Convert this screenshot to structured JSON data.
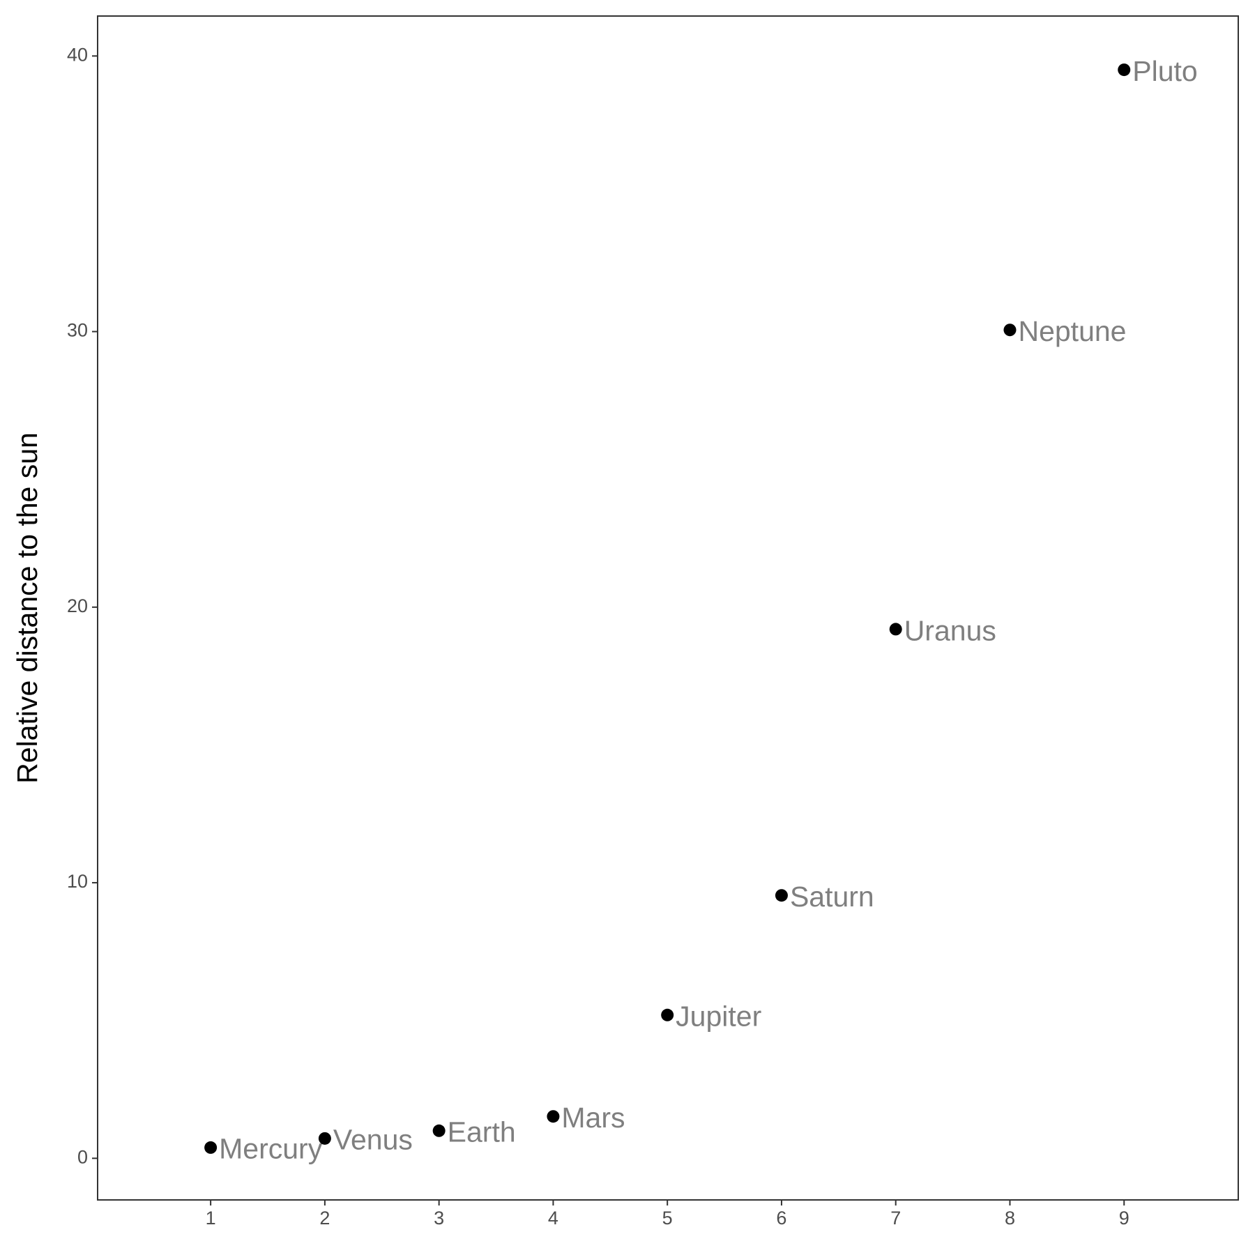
{
  "chart_data": {
    "type": "scatter",
    "y_label": "Relative distance to the sun",
    "x": [
      1,
      2,
      3,
      4,
      5,
      6,
      7,
      8,
      9
    ],
    "values": [
      0.39,
      0.72,
      1,
      1.52,
      5.2,
      9.54,
      19.2,
      30.06,
      39.5
    ],
    "point_labels": [
      "Mercury",
      "Venus",
      "Earth",
      "Mars",
      "Jupiter",
      "Saturn",
      "Uranus",
      "Neptune",
      "Pluto"
    ],
    "color": "#000000",
    "label_color": "#7f7f7f",
    "xlim": [
      0.01,
      10.0
    ],
    "xticks": [
      1,
      2,
      3,
      4,
      5,
      6,
      7,
      8,
      9
    ],
    "ylim": [
      -1.51,
      41.45
    ],
    "yticks": [
      0,
      10,
      20,
      30,
      40
    ],
    "grid": false
  }
}
